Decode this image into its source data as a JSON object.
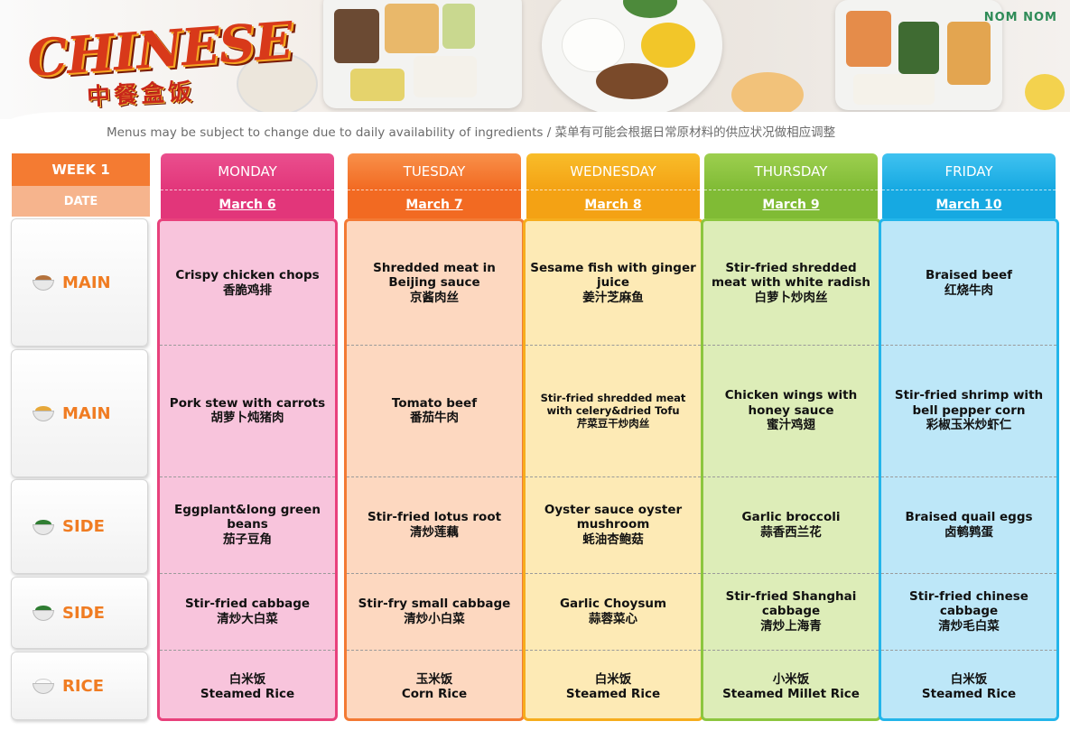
{
  "header": {
    "logo_text": "CHINESE",
    "logo_subtitle": "中餐盒饭",
    "brand": "NOM NOM",
    "notice": "Menus may be subject to change due to daily availability of ingredients / 菜单有可能会根据日常原材料的供应状况做相应调整"
  },
  "left": {
    "week_label": "WEEK 1",
    "date_label": "DATE",
    "rows": [
      {
        "label": "MAIN",
        "icon": "meat-bowl-icon"
      },
      {
        "label": "MAIN",
        "icon": "fries-bowl-icon"
      },
      {
        "label": "SIDE",
        "icon": "greens-bowl-icon"
      },
      {
        "label": "SIDE",
        "icon": "greens-bowl-icon"
      },
      {
        "label": "RICE",
        "icon": "rice-bowl-icon"
      }
    ]
  },
  "colors": {
    "monday": "#e8417c",
    "tuesday": "#f37a34",
    "wednesday": "#f6ad1d",
    "thursday": "#8cc63f",
    "friday": "#23b5ea",
    "label_orange": "#f07c22"
  },
  "days": [
    {
      "name": "MONDAY",
      "date": "March 6",
      "items": [
        [
          "Crispy chicken chops",
          "香脆鸡排"
        ],
        [
          "Pork stew with carrots",
          "胡萝卜炖猪肉"
        ],
        [
          "Eggplant&long green beans",
          "茄子豆角"
        ],
        [
          "Stir-fried  cabbage",
          "清炒大白菜"
        ],
        [
          "白米饭",
          "Steamed Rice"
        ]
      ]
    },
    {
      "name": "TUESDAY",
      "date": "March 7",
      "items": [
        [
          "Shredded meat in Beijing sauce",
          "京酱肉丝"
        ],
        [
          "Tomato beef",
          "番茄牛肉"
        ],
        [
          "Stir-fried lotus root",
          "清炒莲藕"
        ],
        [
          "Stir-fry small cabbage",
          "清炒小白菜"
        ],
        [
          "玉米饭",
          "Corn Rice"
        ]
      ]
    },
    {
      "name": "WEDNESDAY",
      "date": "March 8",
      "items": [
        [
          "Sesame fish with ginger juice",
          "姜汁芝麻鱼"
        ],
        [
          "Stir-fried shredded meat with celery&dried Tofu",
          "芹菜豆干炒肉丝"
        ],
        [
          "Oyster sauce oyster mushroom",
          "蚝油杏鲍菇"
        ],
        [
          "Garlic Choysum",
          "蒜蓉菜心"
        ],
        [
          "白米饭",
          "Steamed Rice"
        ]
      ]
    },
    {
      "name": "THURSDAY",
      "date": "March 9",
      "items": [
        [
          "Stir-fried shredded meat with white radish",
          "白萝卜炒肉丝"
        ],
        [
          "Chicken wings with honey sauce",
          "蜜汁鸡翅"
        ],
        [
          "Garlic broccoli",
          "蒜香西兰花"
        ],
        [
          "Stir-fried Shanghai cabbage",
          "清炒上海青"
        ],
        [
          "小米饭",
          "Steamed Millet Rice"
        ]
      ]
    },
    {
      "name": "FRIDAY",
      "date": "March 10",
      "items": [
        [
          "Braised beef",
          "红烧牛肉"
        ],
        [
          "Stir-fried shrimp with bell pepper corn",
          "彩椒玉米炒虾仁"
        ],
        [
          "Braised quail eggs",
          "卤鹌鹑蛋"
        ],
        [
          "Stir-fried chinese cabbage",
          "清炒毛白菜"
        ],
        [
          "白米饭",
          "Steamed Rice"
        ]
      ]
    }
  ]
}
